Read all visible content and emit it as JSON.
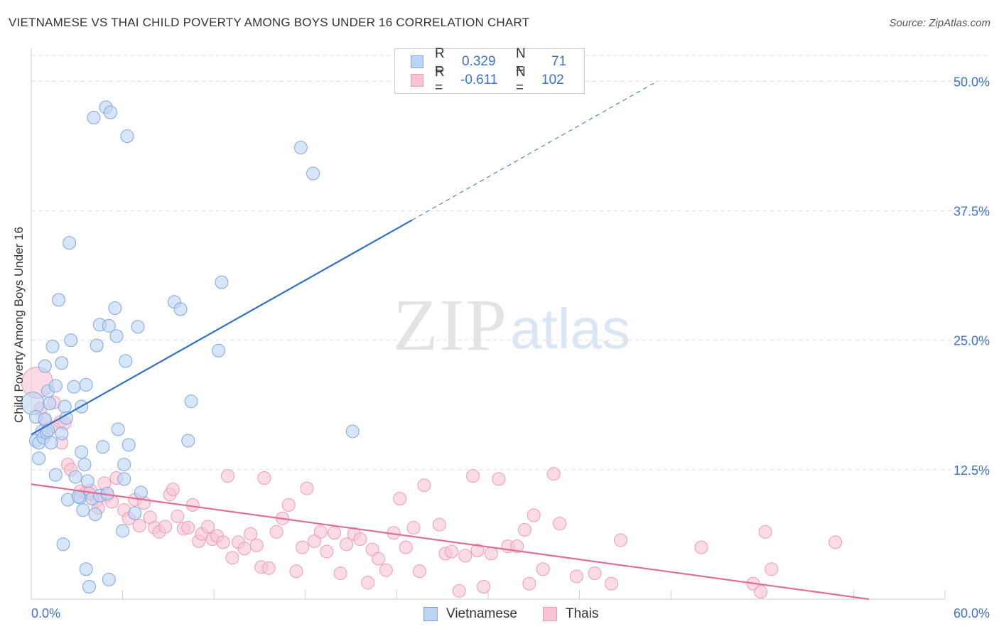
{
  "title": "VIETNAMESE VS THAI CHILD POVERTY AMONG BOYS UNDER 16 CORRELATION CHART",
  "source": "Source: ZipAtlas.com",
  "watermark": {
    "zip": "ZIP",
    "atlas": "atlas"
  },
  "colors": {
    "blue_fill": "#bcd4f4",
    "blue_stroke": "#7ea6df",
    "blue_line": "#2e6fcc",
    "pink_fill": "#f8c4d4",
    "pink_stroke": "#ef9ab6",
    "pink_line": "#e06c98",
    "axis_label": "#3b74c4",
    "grid": "#dddddd"
  },
  "legend": {
    "rows": [
      {
        "r_label": "R =",
        "r_value": "0.329",
        "n_label": "N =",
        "n_value": "71",
        "series": "Vietnamese"
      },
      {
        "r_label": "R =",
        "r_value": "-0.611",
        "n_label": "N =",
        "n_value": "102",
        "series": "Thais"
      }
    ]
  },
  "bottom_legend": [
    "Vietnamese",
    "Thais"
  ],
  "chart_data": {
    "type": "scatter",
    "title": "VIETNAMESE VS THAI CHILD POVERTY AMONG BOYS UNDER 16 CORRELATION CHART",
    "xlabel": "",
    "ylabel": "Child Poverty Among Boys Under 16",
    "xlim": [
      0,
      60
    ],
    "ylim": [
      0,
      52.5
    ],
    "x_tick_labels": [
      "0.0%",
      "60.0%"
    ],
    "y_ticks": [
      12.5,
      25.0,
      37.5,
      50.0
    ],
    "y_tick_labels": [
      "12.5%",
      "25.0%",
      "37.5%",
      "50.0%"
    ],
    "grid": true,
    "legend_position": "top-center",
    "series": [
      {
        "name": "Vietnamese",
        "color": "#7ea6df",
        "points": [
          [
            0.1,
            18.9
          ],
          [
            0.3,
            15.3
          ],
          [
            0.5,
            13.6
          ],
          [
            0.3,
            17.6
          ],
          [
            0.5,
            15.1
          ],
          [
            0.7,
            16.2
          ],
          [
            0.8,
            15.6
          ],
          [
            0.9,
            17.4
          ],
          [
            1.0,
            16.1
          ],
          [
            1.1,
            16.3
          ],
          [
            1.1,
            20.1
          ],
          [
            1.2,
            18.9
          ],
          [
            1.3,
            15.1
          ],
          [
            0.9,
            22.5
          ],
          [
            1.4,
            24.4
          ],
          [
            1.6,
            20.6
          ],
          [
            1.6,
            12.0
          ],
          [
            1.8,
            28.9
          ],
          [
            2.0,
            22.8
          ],
          [
            2.2,
            18.6
          ],
          [
            2.3,
            17.5
          ],
          [
            2.1,
            5.3
          ],
          [
            2.5,
            34.4
          ],
          [
            2.6,
            25.0
          ],
          [
            2.8,
            20.5
          ],
          [
            3.3,
            18.6
          ],
          [
            3.3,
            14.2
          ],
          [
            3.4,
            8.6
          ],
          [
            3.2,
            9.8
          ],
          [
            3.5,
            13.0
          ],
          [
            3.6,
            20.7
          ],
          [
            3.8,
            1.2
          ],
          [
            3.6,
            2.9
          ],
          [
            4.1,
            46.5
          ],
          [
            4.0,
            9.7
          ],
          [
            3.7,
            11.4
          ],
          [
            4.3,
            24.5
          ],
          [
            4.5,
            10.0
          ],
          [
            4.2,
            8.2
          ],
          [
            4.5,
            26.5
          ],
          [
            4.9,
            47.5
          ],
          [
            4.7,
            14.7
          ],
          [
            5.1,
            26.4
          ],
          [
            5.2,
            47.0
          ],
          [
            5.5,
            28.1
          ],
          [
            5.6,
            25.4
          ],
          [
            5.7,
            16.4
          ],
          [
            6.1,
            13.0
          ],
          [
            6.2,
            23.0
          ],
          [
            6.3,
            44.7
          ],
          [
            6.1,
            11.6
          ],
          [
            6.4,
            14.9
          ],
          [
            6.0,
            6.6
          ],
          [
            6.8,
            8.3
          ],
          [
            7.0,
            26.3
          ],
          [
            7.2,
            10.3
          ],
          [
            9.4,
            28.7
          ],
          [
            9.8,
            28.0
          ],
          [
            10.5,
            19.1
          ],
          [
            10.3,
            15.3
          ],
          [
            12.3,
            24.0
          ],
          [
            12.5,
            30.6
          ],
          [
            17.7,
            43.6
          ],
          [
            18.5,
            41.1
          ],
          [
            21.1,
            16.2
          ],
          [
            2.0,
            16.0
          ],
          [
            2.4,
            9.6
          ],
          [
            3.1,
            9.9
          ],
          [
            5.0,
            10.2
          ],
          [
            2.9,
            11.8
          ],
          [
            5.1,
            1.9
          ]
        ],
        "trend": {
          "x0": 0.0,
          "y0": 15.9,
          "x1": 25.0,
          "y1": 36.6,
          "dashed_to": [
            41.1,
            50.0
          ]
        }
      },
      {
        "name": "Thais",
        "color": "#ef9ab6",
        "points": [
          [
            0.4,
            20.9
          ],
          [
            0.6,
            18.4
          ],
          [
            0.9,
            17.3
          ],
          [
            1.3,
            16.6
          ],
          [
            1.5,
            19.0
          ],
          [
            1.9,
            17.1
          ],
          [
            2.0,
            15.1
          ],
          [
            2.4,
            13.0
          ],
          [
            2.6,
            12.5
          ],
          [
            3.2,
            10.4
          ],
          [
            3.6,
            10.3
          ],
          [
            3.9,
            10.5
          ],
          [
            4.3,
            9.5
          ],
          [
            4.4,
            8.8
          ],
          [
            4.8,
            11.2
          ],
          [
            5.0,
            10.0
          ],
          [
            5.3,
            9.4
          ],
          [
            5.6,
            11.7
          ],
          [
            6.1,
            8.6
          ],
          [
            6.4,
            7.8
          ],
          [
            6.8,
            9.6
          ],
          [
            7.1,
            7.1
          ],
          [
            7.4,
            9.3
          ],
          [
            7.8,
            7.9
          ],
          [
            8.1,
            6.9
          ],
          [
            8.4,
            6.5
          ],
          [
            8.8,
            7.0
          ],
          [
            9.1,
            10.1
          ],
          [
            9.3,
            10.6
          ],
          [
            9.6,
            8.0
          ],
          [
            10.0,
            6.8
          ],
          [
            10.3,
            6.9
          ],
          [
            10.6,
            9.1
          ],
          [
            11.0,
            5.6
          ],
          [
            11.2,
            6.3
          ],
          [
            11.6,
            7.0
          ],
          [
            11.9,
            5.8
          ],
          [
            12.2,
            6.1
          ],
          [
            12.6,
            5.5
          ],
          [
            12.9,
            11.9
          ],
          [
            13.2,
            4.0
          ],
          [
            13.6,
            5.5
          ],
          [
            14.0,
            4.9
          ],
          [
            14.4,
            6.3
          ],
          [
            14.8,
            5.2
          ],
          [
            15.3,
            11.7
          ],
          [
            15.1,
            3.1
          ],
          [
            15.6,
            3.0
          ],
          [
            16.1,
            6.5
          ],
          [
            16.5,
            7.8
          ],
          [
            16.9,
            9.1
          ],
          [
            17.4,
            2.7
          ],
          [
            17.8,
            5.0
          ],
          [
            18.1,
            10.7
          ],
          [
            18.6,
            5.6
          ],
          [
            19.0,
            6.5
          ],
          [
            19.4,
            4.6
          ],
          [
            19.9,
            6.4
          ],
          [
            20.3,
            2.5
          ],
          [
            20.7,
            5.3
          ],
          [
            21.2,
            6.3
          ],
          [
            21.6,
            5.8
          ],
          [
            22.1,
            1.6
          ],
          [
            22.4,
            4.8
          ],
          [
            22.8,
            3.9
          ],
          [
            23.3,
            2.8
          ],
          [
            23.8,
            6.4
          ],
          [
            24.2,
            9.7
          ],
          [
            24.6,
            5.0
          ],
          [
            25.1,
            6.9
          ],
          [
            25.5,
            2.7
          ],
          [
            25.8,
            11.0
          ],
          [
            26.8,
            7.2
          ],
          [
            27.2,
            4.4
          ],
          [
            27.6,
            4.6
          ],
          [
            28.1,
            0.8
          ],
          [
            28.5,
            4.2
          ],
          [
            29.0,
            11.9
          ],
          [
            29.3,
            4.7
          ],
          [
            29.7,
            1.2
          ],
          [
            30.2,
            4.4
          ],
          [
            30.7,
            11.6
          ],
          [
            31.3,
            5.1
          ],
          [
            31.9,
            5.1
          ],
          [
            32.4,
            6.7
          ],
          [
            32.7,
            1.5
          ],
          [
            33.0,
            8.1
          ],
          [
            33.6,
            2.9
          ],
          [
            34.3,
            12.1
          ],
          [
            34.7,
            7.3
          ],
          [
            35.8,
            2.2
          ],
          [
            37.0,
            2.5
          ],
          [
            38.1,
            1.5
          ],
          [
            38.7,
            5.7
          ],
          [
            44.0,
            5.0
          ],
          [
            47.4,
            1.5
          ],
          [
            47.9,
            0.7
          ],
          [
            48.2,
            6.5
          ],
          [
            48.6,
            2.9
          ],
          [
            52.8,
            5.5
          ],
          [
            3.8,
            10.2
          ],
          [
            2.2,
            17.0
          ]
        ],
        "trend": {
          "x0": 0.0,
          "y0": 11.1,
          "x1": 55.0,
          "y1": 0.0
        }
      }
    ]
  }
}
